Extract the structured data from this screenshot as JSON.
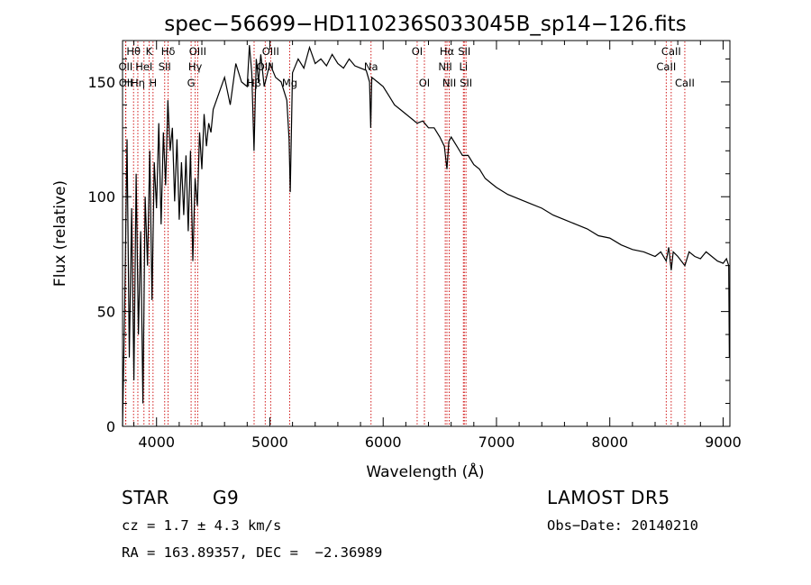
{
  "chart_data": {
    "type": "line",
    "title": "spec−56699−HD110236S033045B_sp14−126.fits",
    "xlabel": "Wavelength (Å)",
    "ylabel": "Flux (relative)",
    "xlim": [
      3700,
      9060
    ],
    "ylim": [
      0,
      168
    ],
    "xticks": [
      4000,
      5000,
      6000,
      7000,
      8000,
      9000
    ],
    "yticks": [
      0,
      50,
      100,
      150
    ],
    "grid": false,
    "series": [
      {
        "x": [
          3700,
          3720,
          3740,
          3760,
          3780,
          3800,
          3820,
          3840,
          3860,
          3880,
          3900,
          3920,
          3940,
          3960,
          3980,
          4000,
          4020,
          4040,
          4060,
          4080,
          4100,
          4120,
          4140,
          4160,
          4180,
          4200,
          4220,
          4240,
          4260,
          4280,
          4300,
          4320,
          4340,
          4360,
          4380,
          4400,
          4420,
          4440,
          4460,
          4480,
          4500,
          4550,
          4600,
          4650,
          4700,
          4750,
          4800,
          4820,
          4840,
          4860,
          4880,
          4900,
          4920,
          4950,
          5000,
          5050,
          5100,
          5150,
          5170,
          5180,
          5200,
          5250,
          5300,
          5350,
          5400,
          5450,
          5500,
          5550,
          5600,
          5650,
          5700,
          5750,
          5800,
          5850,
          5880,
          5890,
          5900,
          5950,
          6000,
          6050,
          6100,
          6150,
          6200,
          6250,
          6300,
          6350,
          6400,
          6450,
          6500,
          6540,
          6563,
          6580,
          6600,
          6650,
          6700,
          6750,
          6800,
          6850,
          6900,
          6950,
          7000,
          7100,
          7200,
          7300,
          7400,
          7500,
          7600,
          7700,
          7800,
          7900,
          8000,
          8100,
          8200,
          8300,
          8400,
          8450,
          8498,
          8520,
          8542,
          8560,
          8600,
          8662,
          8700,
          8750,
          8800,
          8850,
          8900,
          8950,
          9000,
          9030,
          9050,
          9055
        ],
        "values": [
          0,
          55,
          125,
          30,
          95,
          20,
          110,
          40,
          85,
          10,
          100,
          70,
          120,
          55,
          115,
          95,
          132,
          88,
          128,
          105,
          142,
          120,
          130,
          98,
          125,
          90,
          115,
          92,
          118,
          85,
          120,
          72,
          108,
          96,
          128,
          112,
          136,
          122,
          132,
          128,
          138,
          145,
          152,
          140,
          158,
          150,
          148,
          166,
          154,
          120,
          160,
          150,
          162,
          148,
          158,
          152,
          150,
          142,
          125,
          102,
          154,
          160,
          156,
          165,
          158,
          160,
          157,
          162,
          158,
          156,
          160,
          157,
          156,
          155,
          150,
          130,
          152,
          150,
          148,
          144,
          140,
          138,
          136,
          134,
          132,
          133,
          130,
          130,
          126,
          122,
          112,
          124,
          126,
          122,
          118,
          118,
          114,
          112,
          108,
          106,
          104,
          101,
          99,
          97,
          95,
          92,
          90,
          88,
          86,
          83,
          82,
          79,
          77,
          76,
          74,
          76,
          72,
          78,
          68,
          76,
          74,
          70,
          76,
          74,
          73,
          76,
          74,
          72,
          71,
          73,
          70,
          30
        ]
      }
    ],
    "line_markers": [
      {
        "label": "Hθ",
        "x": 3797
      },
      {
        "label": "K",
        "x": 3934
      },
      {
        "label": "Hδ",
        "x": 4102
      },
      {
        "label": "OIII",
        "x": 4363
      },
      {
        "label": "OII",
        "x": 3727
      },
      {
        "label": "HeI",
        "x": 3889
      },
      {
        "label": "SII",
        "x": 4072
      },
      {
        "label": "Hγ",
        "x": 4341
      },
      {
        "label": "OII",
        "x": 3729
      },
      {
        "label": "Hη",
        "x": 3835
      },
      {
        "label": "H",
        "x": 3969
      },
      {
        "label": "G",
        "x": 4305
      },
      {
        "label": "OIII",
        "x": 5007
      },
      {
        "label": "OIII",
        "x": 4959
      },
      {
        "label": "Hβ",
        "x": 4861
      },
      {
        "label": "Mg",
        "x": 5175
      },
      {
        "label": "Na",
        "x": 5893
      },
      {
        "label": "OI",
        "x": 6300
      },
      {
        "label": "OI",
        "x": 6364
      },
      {
        "label": "Hα",
        "x": 6563
      },
      {
        "label": "NII",
        "x": 6548
      },
      {
        "label": "NII",
        "x": 6583
      },
      {
        "label": "SII",
        "x": 6716
      },
      {
        "label": "SII",
        "x": 6731
      },
      {
        "label": "Li",
        "x": 6708
      },
      {
        "label": "CaII",
        "x": 8542
      },
      {
        "label": "CaII",
        "x": 8498
      },
      {
        "label": "CaII",
        "x": 8662
      }
    ]
  },
  "info": {
    "class_label": "STAR",
    "subclass": "G9",
    "survey": "LAMOST DR5",
    "cz_text": "cz = 1.7 ± 4.3 km/s",
    "obs_date_text": "Obs−Date: 20140210",
    "coords_text": "RA = 163.89357, DEC =  −2.36989"
  },
  "colors": {
    "marker_line": "#cc0000",
    "spectrum": "#000000",
    "axis": "#000000"
  }
}
